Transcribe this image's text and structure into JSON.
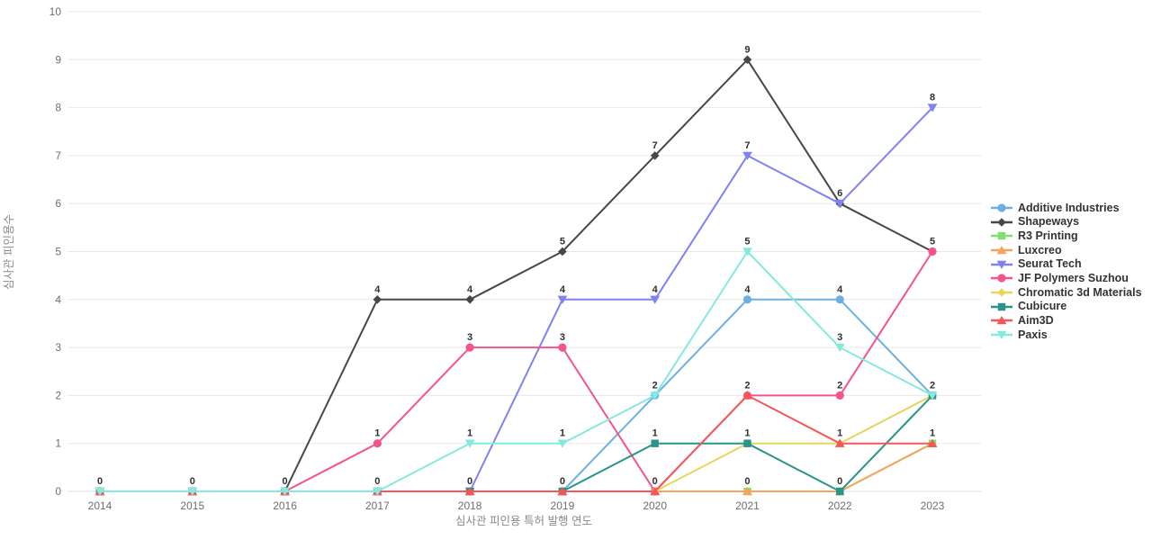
{
  "chart_data": {
    "type": "line",
    "title": "",
    "xlabel": "심사관 피인용 특허 발행 연도",
    "ylabel": "심사관 피인용수",
    "x": [
      2014,
      2015,
      2016,
      2017,
      2018,
      2019,
      2020,
      2021,
      2022,
      2023
    ],
    "ylim": [
      0,
      10
    ],
    "yticks": [
      0,
      1,
      2,
      3,
      4,
      5,
      6,
      7,
      8,
      9,
      10
    ],
    "grid": true,
    "legend_position": "right",
    "point_labels": true,
    "series": [
      {
        "name": "Additive Industries",
        "color": "#6CB0E2",
        "marker": "circle",
        "values": [
          0,
          0,
          0,
          0,
          0,
          0,
          2,
          4,
          4,
          2
        ]
      },
      {
        "name": "Shapeways",
        "color": "#474747",
        "marker": "diamond",
        "values": [
          0,
          0,
          0,
          4,
          4,
          5,
          7,
          9,
          6,
          5
        ]
      },
      {
        "name": "R3 Printing",
        "color": "#7EE06E",
        "marker": "square",
        "values": [
          0,
          0,
          0,
          0,
          0,
          0,
          0,
          0,
          0,
          1
        ]
      },
      {
        "name": "Luxcreo",
        "color": "#F7A35C",
        "marker": "triangle-up",
        "values": [
          0,
          0,
          0,
          0,
          0,
          0,
          0,
          0,
          0,
          1
        ]
      },
      {
        "name": "Seurat Tech",
        "color": "#7F82F0",
        "marker": "triangle-down",
        "values": [
          0,
          0,
          0,
          0,
          0,
          4,
          4,
          7,
          6,
          8
        ]
      },
      {
        "name": "JF Polymers Suzhou",
        "color": "#F4548C",
        "marker": "circle",
        "values": [
          0,
          0,
          0,
          1,
          3,
          3,
          0,
          2,
          2,
          5
        ]
      },
      {
        "name": "Chromatic 3d Materials",
        "color": "#E8D55E",
        "marker": "diamond",
        "values": [
          0,
          0,
          0,
          0,
          0,
          0,
          0,
          1,
          1,
          2
        ]
      },
      {
        "name": "Cubicure",
        "color": "#2A948B",
        "marker": "square",
        "values": [
          0,
          0,
          0,
          0,
          0,
          0,
          1,
          1,
          0,
          2
        ]
      },
      {
        "name": "Aim3D",
        "color": "#F25856",
        "marker": "triangle-up",
        "values": [
          0,
          0,
          0,
          0,
          0,
          0,
          0,
          2,
          1,
          1
        ]
      },
      {
        "name": "Paxis",
        "color": "#85E9DE",
        "marker": "triangle-down",
        "values": [
          0,
          0,
          0,
          0,
          1,
          1,
          2,
          5,
          3,
          2
        ]
      }
    ],
    "style": {
      "grid_color": "#e8e8e8",
      "zero_line_color": "#d9dfeb",
      "tick_text_color": "#6e6e6e",
      "axis_title_color": "#8a8a8a",
      "point_label_color": "#2f2f2f",
      "legend_text_color": "#333333",
      "background": "#ffffff"
    }
  }
}
